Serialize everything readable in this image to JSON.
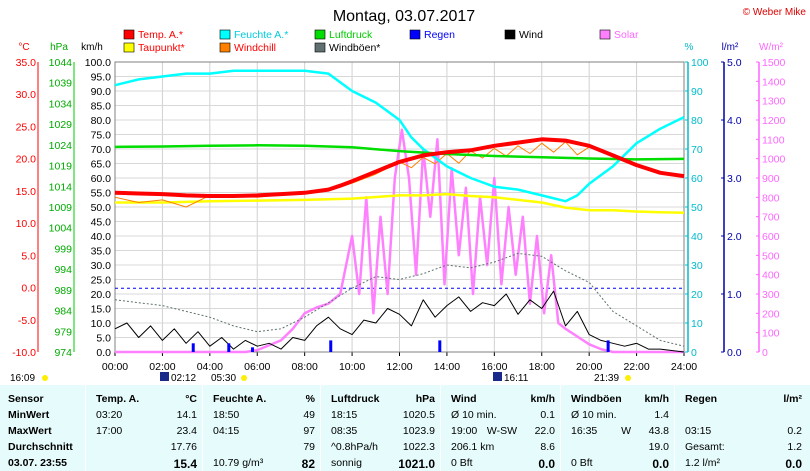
{
  "title": "Montag, 03.07.2017",
  "copyright": "© Weber Mike",
  "colors": {
    "temp": "#ff0000",
    "humidity": "#00ffff",
    "pressure": "#00dd00",
    "rain": "#0000ff",
    "wind": "#000000",
    "solar": "#ff80ff",
    "dewpoint": "#ffff00",
    "windchill": "#ff8000",
    "gusts": "#607070",
    "temp_axis": "#ff0000",
    "pressure_axis": "#00aa00",
    "humidity_axis": "#00bbcc",
    "rain_axis": "#0000aa",
    "solar_axis": "#ff66ff"
  },
  "legend": [
    {
      "label": "Temp. A.*",
      "color": "#ff0000"
    },
    {
      "label": "Feuchte A.*",
      "color": "#00ffff"
    },
    {
      "label": "Luftdruck",
      "color": "#00dd00"
    },
    {
      "label": "Regen",
      "color": "#0000ff"
    },
    {
      "label": "Wind",
      "color": "#000000"
    },
    {
      "label": "Solar",
      "color": "#ff80ff"
    },
    {
      "label": "Taupunkt*",
      "color": "#ffff00"
    },
    {
      "label": "Windchill",
      "color": "#ff8000"
    },
    {
      "label": "Windböen*",
      "color": "#607070"
    }
  ],
  "axis_units": {
    "temp": "°C",
    "pressure": "hPa",
    "wind": "km/h",
    "humidity": "%",
    "rain": "l/m²",
    "solar": "W/m²"
  },
  "chart_data": {
    "type": "line",
    "x_ticks": [
      "00:00",
      "02:00",
      "04:00",
      "06:00",
      "08:00",
      "10:00",
      "12:00",
      "14:00",
      "16:00",
      "18:00",
      "20:00",
      "22:00",
      "24:00"
    ],
    "axes": {
      "temp": {
        "range": [
          -10,
          35
        ],
        "ticks": [
          "35.0",
          "30.0",
          "25.0",
          "20.0",
          "15.0",
          "10.0",
          "5.0",
          "0.0",
          "-5.0",
          "-10.0"
        ]
      },
      "pressure": {
        "range": [
          974,
          1044
        ],
        "ticks": [
          "1044",
          "1039",
          "1034",
          "1029",
          "1024",
          "1019",
          "1014",
          "1009",
          "1004",
          "999",
          "994",
          "989",
          "984",
          "979",
          "974"
        ]
      },
      "wind": {
        "range": [
          0,
          100
        ],
        "ticks": [
          "100.0",
          "95.0",
          "90.0",
          "85.0",
          "80.0",
          "75.0",
          "70.0",
          "65.0",
          "60.0",
          "55.0",
          "50.0",
          "45.0",
          "40.0",
          "35.0",
          "30.0",
          "25.0",
          "20.0",
          "15.0",
          "10.0",
          "5.0",
          "0.0"
        ]
      },
      "humidity": {
        "range": [
          0,
          100
        ],
        "ticks": [
          "100",
          "90",
          "80",
          "70",
          "60",
          "50",
          "40",
          "30",
          "20",
          "10",
          "0"
        ]
      },
      "rain": {
        "range": [
          0,
          5
        ],
        "ticks": [
          "5.0",
          "4.0",
          "3.0",
          "2.0",
          "1.0",
          "0.0"
        ]
      },
      "solar": {
        "range": [
          0,
          1500
        ],
        "ticks": [
          "1500",
          "1400",
          "1300",
          "1200",
          "1100",
          "1000",
          "900",
          "800",
          "700",
          "600",
          "500",
          "400",
          "300",
          "200",
          "100",
          "0"
        ]
      }
    },
    "series": [
      {
        "name": "Temp. A.*",
        "key": "temp",
        "axis": "temp",
        "x": [
          0,
          1,
          2,
          3,
          4,
          5,
          6,
          7,
          8,
          9,
          9.5,
          10,
          11,
          12,
          13,
          14,
          15,
          16,
          17,
          18,
          19,
          20,
          21,
          22,
          23,
          24
        ],
        "y": [
          14.7,
          14.6,
          14.5,
          14.3,
          14.2,
          14.2,
          14.3,
          14.5,
          14.7,
          15.2,
          15.8,
          16.5,
          18,
          19.5,
          20.5,
          21,
          21.3,
          22,
          22.5,
          23,
          22.8,
          22,
          20.5,
          19,
          17.8,
          17.3
        ]
      },
      {
        "name": "Taupunkt*",
        "key": "dewpoint",
        "axis": "temp",
        "x": [
          0,
          2,
          4,
          6,
          8,
          10,
          12,
          13,
          14,
          15,
          16,
          17,
          18,
          19,
          20,
          21,
          22,
          23,
          24
        ],
        "y": [
          13.2,
          13.2,
          13.4,
          13.5,
          13.6,
          13.8,
          14.3,
          14.3,
          14.5,
          14.2,
          14.0,
          13.6,
          13.2,
          12.4,
          12.0,
          12.0,
          11.8,
          11.7,
          11.6
        ]
      },
      {
        "name": "Windchill",
        "key": "windchill",
        "axis": "temp",
        "x": [
          0,
          1,
          2,
          3,
          4,
          5,
          6,
          7,
          8,
          9,
          10,
          11,
          12,
          12.5,
          13,
          13.5,
          14,
          14.5,
          15,
          15.5,
          16,
          16.5,
          17,
          17.5,
          18,
          18.5,
          19,
          19.5,
          20,
          21,
          22,
          23,
          24
        ],
        "y": [
          14,
          13.2,
          13.6,
          12.5,
          14.3,
          14.2,
          14.0,
          14.4,
          14.9,
          15.0,
          16.2,
          17.6,
          19.5,
          18.6,
          20.2,
          19.2,
          20.8,
          19.3,
          21.2,
          20.1,
          21.6,
          20.4,
          22.0,
          20.8,
          22.4,
          21.0,
          22.6,
          20.6,
          21.8,
          20.4,
          19.0,
          17.8,
          17.3
        ]
      },
      {
        "name": "Feuchte A.*",
        "key": "humidity",
        "axis": "humidity",
        "x": [
          0,
          1,
          2,
          3,
          4,
          5,
          6,
          7,
          8,
          9,
          10,
          11,
          12,
          12.5,
          13,
          14,
          15,
          16,
          17,
          18,
          19,
          19.5,
          20,
          21,
          22,
          23,
          24
        ],
        "y": [
          92,
          94,
          95,
          96,
          96,
          97,
          97,
          97,
          97,
          96,
          90,
          86,
          80,
          74,
          70,
          64,
          60,
          57,
          56,
          54,
          52,
          54,
          58,
          64,
          72,
          77,
          81
        ]
      },
      {
        "name": "Luftdruck",
        "key": "pressure",
        "axis": "pressure",
        "x": [
          0,
          2,
          4,
          6,
          8,
          10,
          12,
          14,
          16,
          18,
          20,
          22,
          24
        ],
        "y": [
          1023.5,
          1023.6,
          1023.8,
          1023.9,
          1023.8,
          1023.4,
          1022.5,
          1021.8,
          1021.3,
          1021.0,
          1020.7,
          1020.5,
          1020.6
        ]
      },
      {
        "name": "Wind",
        "key": "wind",
        "axis": "wind",
        "x": [
          0,
          0.5,
          1,
          1.5,
          2,
          2.5,
          3,
          3.5,
          4,
          4.5,
          5,
          5.5,
          6,
          6.5,
          7,
          7.5,
          8,
          8.5,
          9,
          9.5,
          10,
          10.5,
          11,
          11.5,
          12,
          12.5,
          13,
          13.5,
          14,
          14.5,
          15,
          15.5,
          16,
          16.5,
          17,
          17.5,
          18,
          18.5,
          19,
          19.5,
          20,
          20.5,
          21,
          21.5,
          22,
          22.5,
          23,
          24
        ],
        "y": [
          8,
          10,
          5,
          9,
          4,
          8,
          3,
          7,
          2,
          5,
          1,
          4,
          2,
          3,
          1,
          5,
          4,
          9,
          12,
          8,
          6,
          11,
          10,
          15,
          13,
          9,
          18,
          12,
          16,
          19,
          14,
          17,
          16,
          20,
          13,
          18,
          15,
          21,
          9,
          14,
          6,
          4,
          3,
          2,
          3,
          1,
          1,
          0
        ]
      },
      {
        "name": "Windböen*",
        "key": "gusts",
        "axis": "wind",
        "x": [
          0,
          1,
          2,
          3,
          4,
          5,
          6,
          7,
          8,
          9,
          10,
          11,
          12,
          13,
          14,
          15,
          16,
          17,
          18,
          19,
          20,
          21,
          22,
          23,
          24
        ],
        "y": [
          18,
          17,
          16,
          14,
          12,
          9,
          7,
          8,
          12,
          17,
          22,
          26,
          25,
          27,
          30,
          29,
          31,
          34,
          33,
          28,
          24,
          14,
          9,
          4,
          2
        ]
      },
      {
        "name": "Solar",
        "key": "solar",
        "axis": "solar",
        "x": [
          0,
          5.5,
          6,
          7,
          7.5,
          8,
          8.5,
          9,
          9.5,
          10,
          10.3,
          10.6,
          10.9,
          11.2,
          11.5,
          11.8,
          12.1,
          12.4,
          12.7,
          13,
          13.3,
          13.6,
          13.9,
          14.2,
          14.5,
          14.8,
          15.1,
          15.4,
          15.7,
          16,
          16.3,
          16.6,
          16.9,
          17.2,
          17.5,
          17.8,
          18.1,
          18.4,
          18.7,
          19,
          19.5,
          20,
          20.5,
          21,
          24
        ],
        "y": [
          0,
          0,
          10,
          60,
          120,
          200,
          230,
          250,
          300,
          600,
          300,
          800,
          200,
          700,
          300,
          900,
          1150,
          900,
          400,
          1050,
          700,
          1100,
          350,
          950,
          500,
          850,
          300,
          800,
          450,
          900,
          350,
          750,
          400,
          700,
          250,
          600,
          200,
          500,
          150,
          120,
          80,
          40,
          15,
          0,
          0
        ]
      }
    ],
    "rain_marks": [
      {
        "x": 3.3,
        "v": 0.15
      },
      {
        "x": 4.8,
        "v": 0.15
      },
      {
        "x": 5.8,
        "v": 0.08
      },
      {
        "x": 9.1,
        "v": 0.2
      },
      {
        "x": 13.7,
        "v": 0.2
      },
      {
        "x": 20.8,
        "v": 0.2
      }
    ],
    "rain_total_line": {
      "value": 1.1
    }
  },
  "events": {
    "left_time": "16:09",
    "sunrise": "02:12",
    "sunrise_alt": "05:30",
    "moon_time": "16:11",
    "sunset": "21:39"
  },
  "summary": {
    "columns": [
      {
        "header": "Sensor",
        "header_unit": "",
        "rows": [
          "MinWert",
          "MaxWert",
          "Durchschnitt",
          "03.07. 23:55"
        ]
      },
      {
        "header": "Temp. A.",
        "header_unit": "°C",
        "rows": [
          [
            "03:20",
            "14.1"
          ],
          [
            "17:00",
            "23.4"
          ],
          [
            "",
            "17.76"
          ],
          [
            "",
            "15.4"
          ]
        ]
      },
      {
        "header": "Feuchte A.",
        "header_unit": "%",
        "rows": [
          [
            "18:50",
            "49"
          ],
          [
            "04:15",
            "97"
          ],
          [
            "",
            "79"
          ],
          [
            "10.79 g/m³",
            "82"
          ]
        ]
      },
      {
        "header": "Luftdruck",
        "header_unit": "hPa",
        "rows": [
          [
            "18:15",
            "1020.5"
          ],
          [
            "08:35",
            "1023.9"
          ],
          [
            "^0.8hPa/h",
            "1022.3"
          ],
          [
            "sonnig",
            "1021.0"
          ]
        ]
      },
      {
        "header": "Wind",
        "header_unit": "km/h",
        "rows": [
          [
            "Ø 10 min.",
            "",
            "0.1"
          ],
          [
            "19:00",
            "W-SW",
            "22.0"
          ],
          [
            "206.1 km",
            "",
            "8.6"
          ],
          [
            "0 Bft",
            "",
            "0.0"
          ]
        ]
      },
      {
        "header": "Windböen",
        "header_unit": "km/h",
        "rows": [
          [
            "Ø 10 min.",
            "",
            "1.4"
          ],
          [
            "16:35",
            "W",
            "43.8"
          ],
          [
            "",
            "",
            "19.0"
          ],
          [
            "0 Bft",
            "",
            "0.0"
          ]
        ]
      },
      {
        "header": "Regen",
        "header_unit": "l/m²",
        "rows": [
          [
            "",
            ""
          ],
          [
            "03:15",
            "0.2"
          ],
          [
            "Gesamt:",
            "1.2"
          ],
          [
            "1.2 l/m²",
            "0.0"
          ]
        ]
      }
    ]
  }
}
